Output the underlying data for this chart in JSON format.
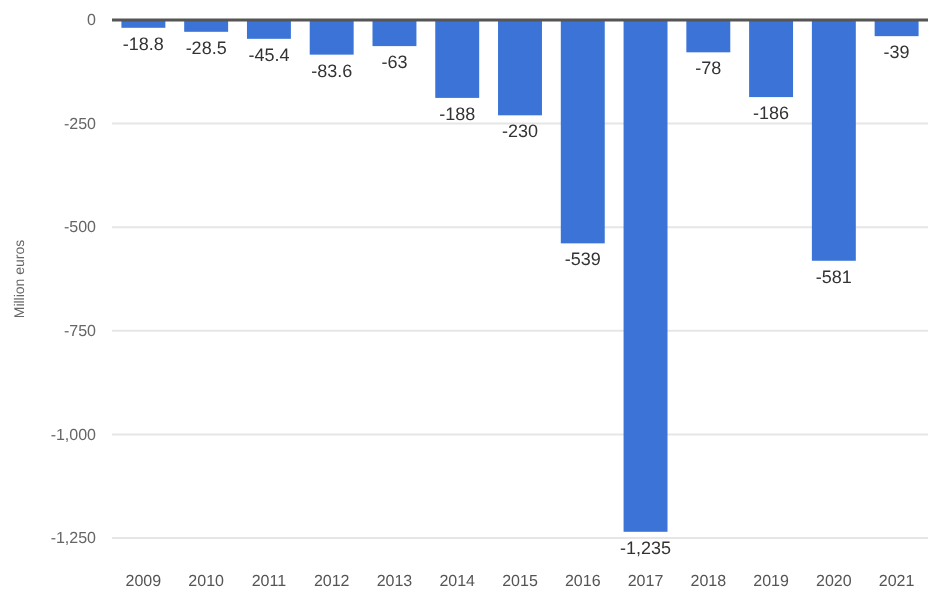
{
  "chart_data": {
    "type": "bar",
    "ylabel": "Million euros",
    "categories": [
      "2009",
      "2010",
      "2011",
      "2012",
      "2013",
      "2014",
      "2015",
      "2016",
      "2017",
      "2018",
      "2019",
      "2020",
      "2021"
    ],
    "values": [
      -18.8,
      -28.5,
      -45.4,
      -83.6,
      -63,
      -188,
      -230,
      -539,
      -1235,
      -78,
      -186,
      -581,
      -39
    ],
    "value_labels": [
      "-18.8",
      "-28.5",
      "-45.4",
      "-83.6",
      "-63",
      "-188",
      "-230",
      "-539",
      "-1,235",
      "-78",
      "-186",
      "-581",
      "-39"
    ],
    "color": "#3b74d6",
    "ylim": [
      -1250,
      0
    ],
    "yticks": [
      0,
      -250,
      -500,
      -750,
      {
        "value": -1000,
        "label": "-1,000"
      },
      {
        "value": -1250,
        "label": "-1,250"
      }
    ],
    "grid": "y"
  }
}
